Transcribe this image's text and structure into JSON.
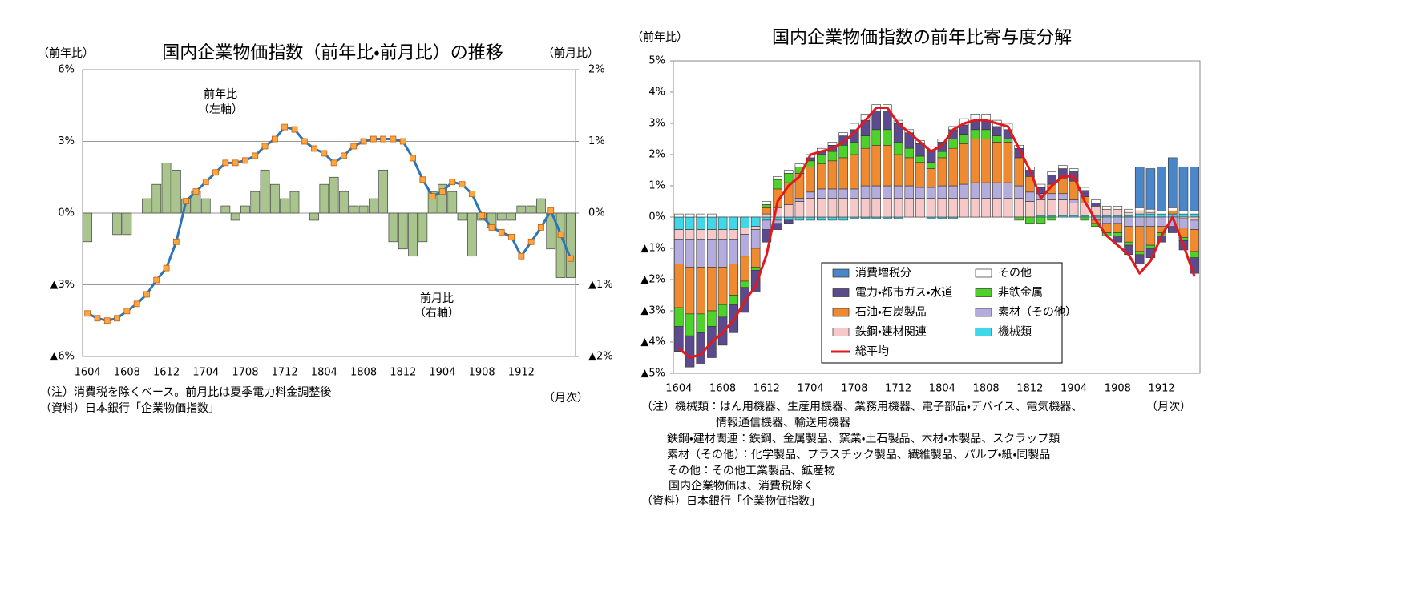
{
  "chart_data": [
    {
      "type": "combo",
      "title": "国内企業物価指数（前年比・前月比）の推移",
      "y_label": "（前年比）",
      "y2_label": "（前月比）",
      "x_label": "（月次）",
      "categories": [
        "1604",
        null,
        null,
        null,
        "1608",
        null,
        null,
        null,
        "1612",
        null,
        null,
        null,
        "1704",
        null,
        null,
        null,
        "1708",
        null,
        null,
        null,
        "1712",
        null,
        null,
        null,
        "1804",
        null,
        null,
        null,
        "1808",
        null,
        null,
        null,
        "1812",
        null,
        null,
        null,
        "1904",
        null,
        null,
        null,
        "1908",
        null,
        null,
        null,
        "1912",
        null,
        null,
        null,
        null,
        null
      ],
      "ylim": [
        -6,
        6
      ],
      "yticks": [
        {
          "value": 6,
          "label": "6%"
        },
        {
          "value": 3,
          "label": "3%"
        },
        {
          "value": 0,
          "label": "0%"
        },
        {
          "value": -3,
          "label": "▲3%"
        },
        {
          "value": -6,
          "label": "▲6%"
        }
      ],
      "y2lim": [
        -2,
        2
      ],
      "y2ticks": [
        {
          "value": 2,
          "label": "2%"
        },
        {
          "value": 1,
          "label": "1%"
        },
        {
          "value": 0,
          "label": "0%"
        },
        {
          "value": -1,
          "label": "▲1%"
        },
        {
          "value": -2,
          "label": "▲2%"
        }
      ],
      "grid": true,
      "series": [
        {
          "type": "bar",
          "axis": "y2",
          "color": "#a9c48c",
          "values": [
            -0.4,
            0,
            0,
            -0.3,
            -0.3,
            0,
            0.2,
            0.4,
            0.7,
            0.6,
            0.2,
            0.3,
            0.2,
            0,
            0.1,
            -0.1,
            0.1,
            0.3,
            0.6,
            0.4,
            0.2,
            0.3,
            0,
            -0.1,
            0.4,
            0.5,
            0.3,
            0.1,
            0.1,
            0.2,
            0.6,
            -0.4,
            -0.5,
            -0.6,
            -0.4,
            0.3,
            0.4,
            0.3,
            -0.1,
            -0.6,
            -0.1,
            -0.2,
            -0.1,
            -0.1,
            0.1,
            0.1,
            0.2,
            -0.5,
            -0.9,
            -0.9
          ]
        },
        {
          "type": "line",
          "color": "#2e75b6",
          "marker_color": "#ffa640",
          "values": [
            -4.2,
            -4.4,
            -4.5,
            -4.4,
            -4.1,
            -3.8,
            -3.4,
            -2.8,
            -2.3,
            -1.2,
            0.5,
            0.9,
            1.3,
            1.7,
            2.1,
            2.1,
            2.2,
            2.4,
            2.8,
            3.1,
            3.6,
            3.5,
            3.0,
            2.7,
            2.5,
            2.1,
            2.4,
            2.8,
            3.0,
            3.1,
            3.1,
            3.1,
            3.0,
            2.3,
            1.4,
            0.7,
            0.9,
            1.3,
            1.2,
            0.8,
            -0.1,
            -0.6,
            -0.8,
            -1.0,
            -1.8,
            -1.2,
            -0.6,
            0.1,
            -0.9,
            -1.9
          ]
        }
      ],
      "annotations": [
        {
          "text": "前年比"
        },
        {
          "text": "（左軸）"
        },
        {
          "text": "前月比"
        },
        {
          "text": "（右軸）"
        }
      ],
      "notes": [
        "（注）消費税を除くベース。前月比は夏季電力料金調整後",
        "（資料）日本銀行「企業物価指数」"
      ]
    },
    {
      "type": "stacked_bar",
      "title": "国内企業物価指数の前年比寄与度分解",
      "y_label": "（前年比）",
      "x_label": "（月次）",
      "categories": [
        "1604",
        null,
        null,
        null,
        "1608",
        null,
        null,
        null,
        "1612",
        null,
        null,
        null,
        "1704",
        null,
        null,
        null,
        "1708",
        null,
        null,
        null,
        "1712",
        null,
        null,
        null,
        "1804",
        null,
        null,
        null,
        "1808",
        null,
        null,
        null,
        "1812",
        null,
        null,
        null,
        "1904",
        null,
        null,
        null,
        "1908",
        null,
        null,
        null,
        "1912",
        null,
        null,
        null
      ],
      "ylim": [
        -5,
        5
      ],
      "yticks": [
        {
          "value": 5,
          "label": "5%"
        },
        {
          "value": 4,
          "label": "4%"
        },
        {
          "value": 3,
          "label": "3%"
        },
        {
          "value": 2,
          "label": "2%"
        },
        {
          "value": 1,
          "label": "1%"
        },
        {
          "value": 0,
          "label": "0%"
        },
        {
          "value": -1,
          "label": "▲1%"
        },
        {
          "value": -2,
          "label": "▲2%"
        },
        {
          "value": -3,
          "label": "▲3%"
        },
        {
          "value": -4,
          "label": "▲4%"
        },
        {
          "value": -5,
          "label": "▲5%"
        }
      ],
      "grid": false,
      "series": [
        {
          "name": "消費増税分",
          "type": "bar",
          "color": "#4a86c8",
          "values": [
            0,
            0,
            0,
            0,
            0,
            0,
            0,
            0,
            0,
            0,
            0,
            0,
            0,
            0,
            0,
            0,
            0,
            0,
            0,
            0,
            0,
            0,
            0,
            0,
            0,
            0,
            0,
            0,
            0,
            0,
            0,
            0,
            0,
            0,
            0,
            0,
            0,
            0,
            0,
            0,
            0,
            0,
            1.3,
            1.3,
            1.4,
            1.6,
            1.4,
            1.4
          ]
        },
        {
          "name": "その他",
          "type": "bar",
          "color": "#ffffff",
          "values": [
            0.1,
            0.1,
            0.1,
            0.1,
            0,
            0,
            0,
            0,
            0.1,
            0.1,
            0.1,
            0.1,
            0.1,
            0.1,
            0.1,
            0.1,
            0.2,
            0.2,
            0.2,
            0.2,
            0.1,
            0.1,
            0.1,
            0.1,
            0.1,
            0.1,
            0.2,
            0.2,
            0.2,
            0.2,
            0.2,
            0.1,
            0.1,
            0.1,
            0.1,
            0.1,
            0.1,
            0.1,
            0.1,
            0.1,
            0.1,
            0.1,
            0.1,
            0.1,
            0.1,
            0.1,
            0.1,
            0.1
          ]
        },
        {
          "name": "電力・都市ガス・水道",
          "type": "bar",
          "color": "#5b4a8e",
          "values": [
            -0.8,
            -1.0,
            -1.0,
            -1.0,
            -0.9,
            -0.9,
            -0.8,
            -0.7,
            -0.4,
            -0.2,
            -0.1,
            0,
            0.1,
            0.1,
            0.2,
            0.3,
            0.4,
            0.5,
            0.6,
            0.6,
            0.6,
            0.5,
            0.4,
            0.4,
            0.3,
            0.3,
            0.3,
            0.3,
            0.3,
            0.3,
            0.3,
            0.3,
            0.2,
            0.2,
            0.3,
            0.3,
            0.3,
            0.2,
            0.1,
            0,
            -0.2,
            -0.3,
            -0.3,
            -0.3,
            -0.2,
            -0.2,
            -0.3,
            -0.5
          ]
        },
        {
          "name": "非鉄金属",
          "type": "bar",
          "color": "#4dd22a",
          "values": [
            -0.6,
            -0.7,
            -0.6,
            -0.5,
            -0.4,
            -0.3,
            -0.2,
            -0.1,
            0.1,
            0.3,
            0.3,
            0.2,
            0.2,
            0.3,
            0.3,
            0.4,
            0.4,
            0.4,
            0.5,
            0.5,
            0.4,
            0.3,
            0.2,
            0.2,
            0.2,
            0.3,
            0.3,
            0.3,
            0.3,
            0.2,
            0.1,
            -0.1,
            -0.2,
            -0.2,
            -0.1,
            0,
            0,
            -0.1,
            -0.1,
            -0.1,
            -0.1,
            -0.1,
            -0.1,
            -0.1,
            -0.1,
            0,
            -0.1,
            -0.2
          ]
        },
        {
          "name": "石油・石炭製品",
          "type": "bar",
          "color": "#f08a30",
          "values": [
            -1.4,
            -1.5,
            -1.5,
            -1.4,
            -1.2,
            -1.0,
            -0.8,
            -0.6,
            0.2,
            0.6,
            0.7,
            0.8,
            0.8,
            0.8,
            0.9,
            1.0,
            1.1,
            1.2,
            1.3,
            1.3,
            1.0,
            0.9,
            0.8,
            0.6,
            0.9,
            1.2,
            1.3,
            1.4,
            1.4,
            1.3,
            1.3,
            0.9,
            0.5,
            0,
            0.3,
            0.5,
            0.6,
            0.2,
            -0.1,
            -0.3,
            -0.3,
            -0.5,
            -0.8,
            -0.6,
            -0.2,
            0.1,
            -0.3,
            -0.7
          ]
        },
        {
          "name": "素材（その他）",
          "type": "bar",
          "color": "#b4acdc",
          "values": [
            -0.8,
            -0.9,
            -0.9,
            -0.9,
            -0.9,
            -0.8,
            -0.7,
            -0.6,
            -0.3,
            -0.1,
            0,
            0.1,
            0.2,
            0.3,
            0.3,
            0.3,
            0.3,
            0.4,
            0.4,
            0.4,
            0.4,
            0.4,
            0.35,
            0.35,
            0.4,
            0.4,
            0.45,
            0.5,
            0.5,
            0.5,
            0.5,
            0.4,
            0.3,
            0.2,
            0.2,
            0.2,
            0.1,
            0,
            -0.1,
            -0.2,
            -0.2,
            -0.3,
            -0.3,
            -0.3,
            -0.3,
            -0.3,
            -0.3,
            -0.3
          ]
        },
        {
          "name": "鉄鋼・建材関連",
          "type": "bar",
          "color": "#f6c8c8",
          "values": [
            -0.3,
            -0.3,
            -0.3,
            -0.3,
            -0.3,
            -0.3,
            -0.2,
            -0.1,
            0.1,
            0.3,
            0.4,
            0.5,
            0.6,
            0.6,
            0.6,
            0.6,
            0.6,
            0.6,
            0.6,
            0.6,
            0.6,
            0.6,
            0.6,
            0.6,
            0.6,
            0.6,
            0.6,
            0.6,
            0.6,
            0.6,
            0.6,
            0.6,
            0.5,
            0.5,
            0.5,
            0.5,
            0.4,
            0.4,
            0.3,
            0.2,
            0.2,
            0.1,
            0.1,
            0.05,
            0,
            0,
            -0.05,
            -0.1
          ]
        },
        {
          "name": "機械類",
          "type": "bar",
          "color": "#3fd8e8",
          "values": [
            -0.4,
            -0.4,
            -0.4,
            -0.4,
            -0.4,
            -0.4,
            -0.35,
            -0.3,
            -0.1,
            -0.1,
            -0.1,
            -0.1,
            -0.1,
            -0.1,
            -0.1,
            -0.1,
            -0.05,
            -0.05,
            -0.05,
            -0.05,
            -0.05,
            0,
            0,
            -0.05,
            -0.05,
            -0.05,
            0,
            0,
            0,
            0,
            0,
            0,
            0,
            0.05,
            0.05,
            0.05,
            0.05,
            0.05,
            0.05,
            0.05,
            0.05,
            0.05,
            0.1,
            0.1,
            0.1,
            0.1,
            0.1,
            0.1
          ]
        },
        {
          "name": "総平均",
          "type": "line",
          "color": "#e0191e",
          "values": [
            -4.2,
            -4.5,
            -4.4,
            -4.0,
            -3.7,
            -3.3,
            -2.7,
            -2.2,
            -1.2,
            0.5,
            1.0,
            1.3,
            2.0,
            2.1,
            2.2,
            2.4,
            2.7,
            3.1,
            3.5,
            3.5,
            3.0,
            2.7,
            2.4,
            2.1,
            2.3,
            2.8,
            3.0,
            3.1,
            3.1,
            3.0,
            2.9,
            2.2,
            1.5,
            0.6,
            1.0,
            1.3,
            1.3,
            0.5,
            -0.1,
            -0.6,
            -0.9,
            -1.2,
            -1.8,
            -1.4,
            -0.6,
            0.0,
            -0.9,
            -1.9
          ]
        }
      ],
      "notes": [
        "（注）機械類：はん用機器、生産用機器、業務用機器、電子部品・デバイス、電気機器、",
        "情報通信機器、輸送用機器",
        "鉄鋼・建材関連：鉄鋼、金属製品、窯業・土石製品、木材・木製品、スクラップ類",
        "素材（その他）：化学製品、プラスチック製品、繊維製品、パルプ・紙・同製品",
        "その他：その他工業製品、鉱産物",
        "国内企業物価は、消費税除く",
        "（資料）日本銀行「企業物価指数」"
      ]
    }
  ]
}
